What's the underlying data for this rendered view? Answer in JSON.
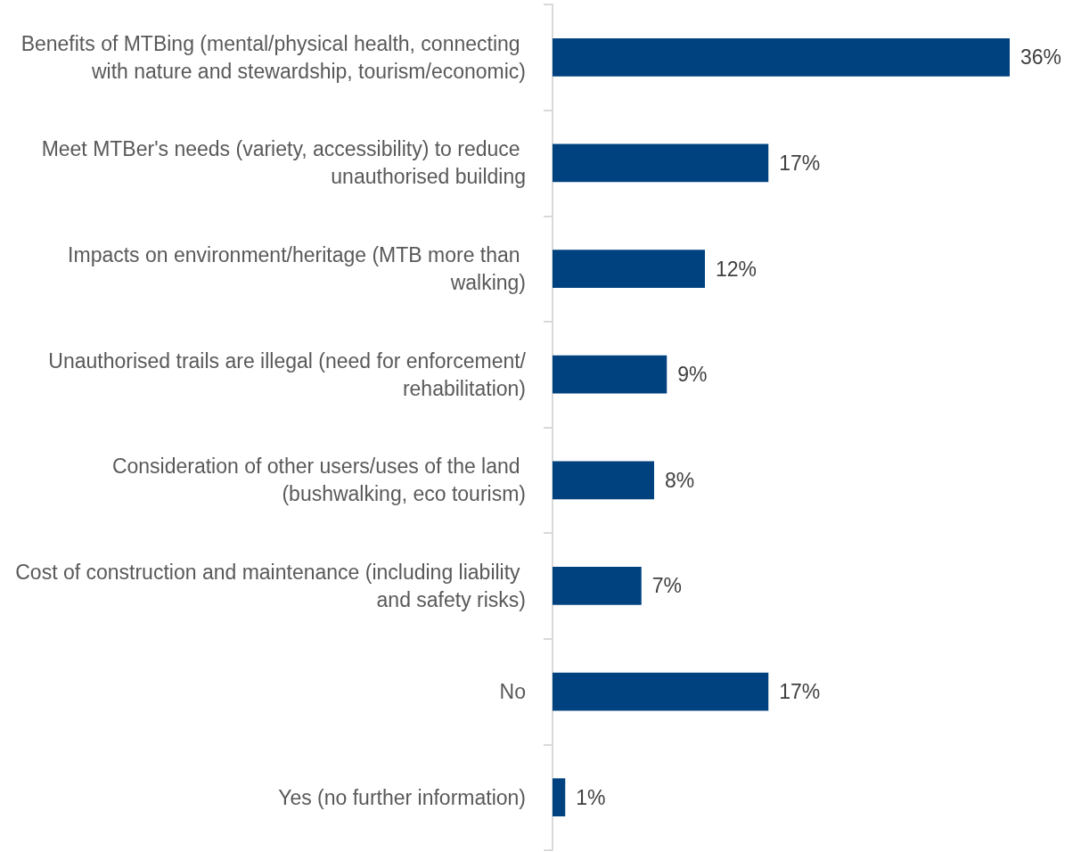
{
  "chart_data": {
    "type": "bar",
    "orientation": "horizontal",
    "categories": [
      "Benefits of MTBing (mental/physical health, connecting with nature and stewardship, tourism/economic)",
      "Meet MTBer's needs (variety, accessibility) to reduce unauthorised building",
      "Impacts on environment/heritage (MTB more than walking)",
      "Unauthorised trails are illegal (need for enforcement/rehabilitation)",
      "Consideration of other users/uses of the land (bushwalking, eco tourism)",
      "Cost of construction and maintenance (including liability and safety risks)",
      "No",
      "Yes (no further information)"
    ],
    "values": [
      36,
      17,
      12,
      9,
      8,
      7,
      17,
      1
    ],
    "value_labels": [
      "36%",
      "17%",
      "12%",
      "9%",
      "8%",
      "7%",
      "17%",
      "1%"
    ],
    "color": "#00427f"
  }
}
